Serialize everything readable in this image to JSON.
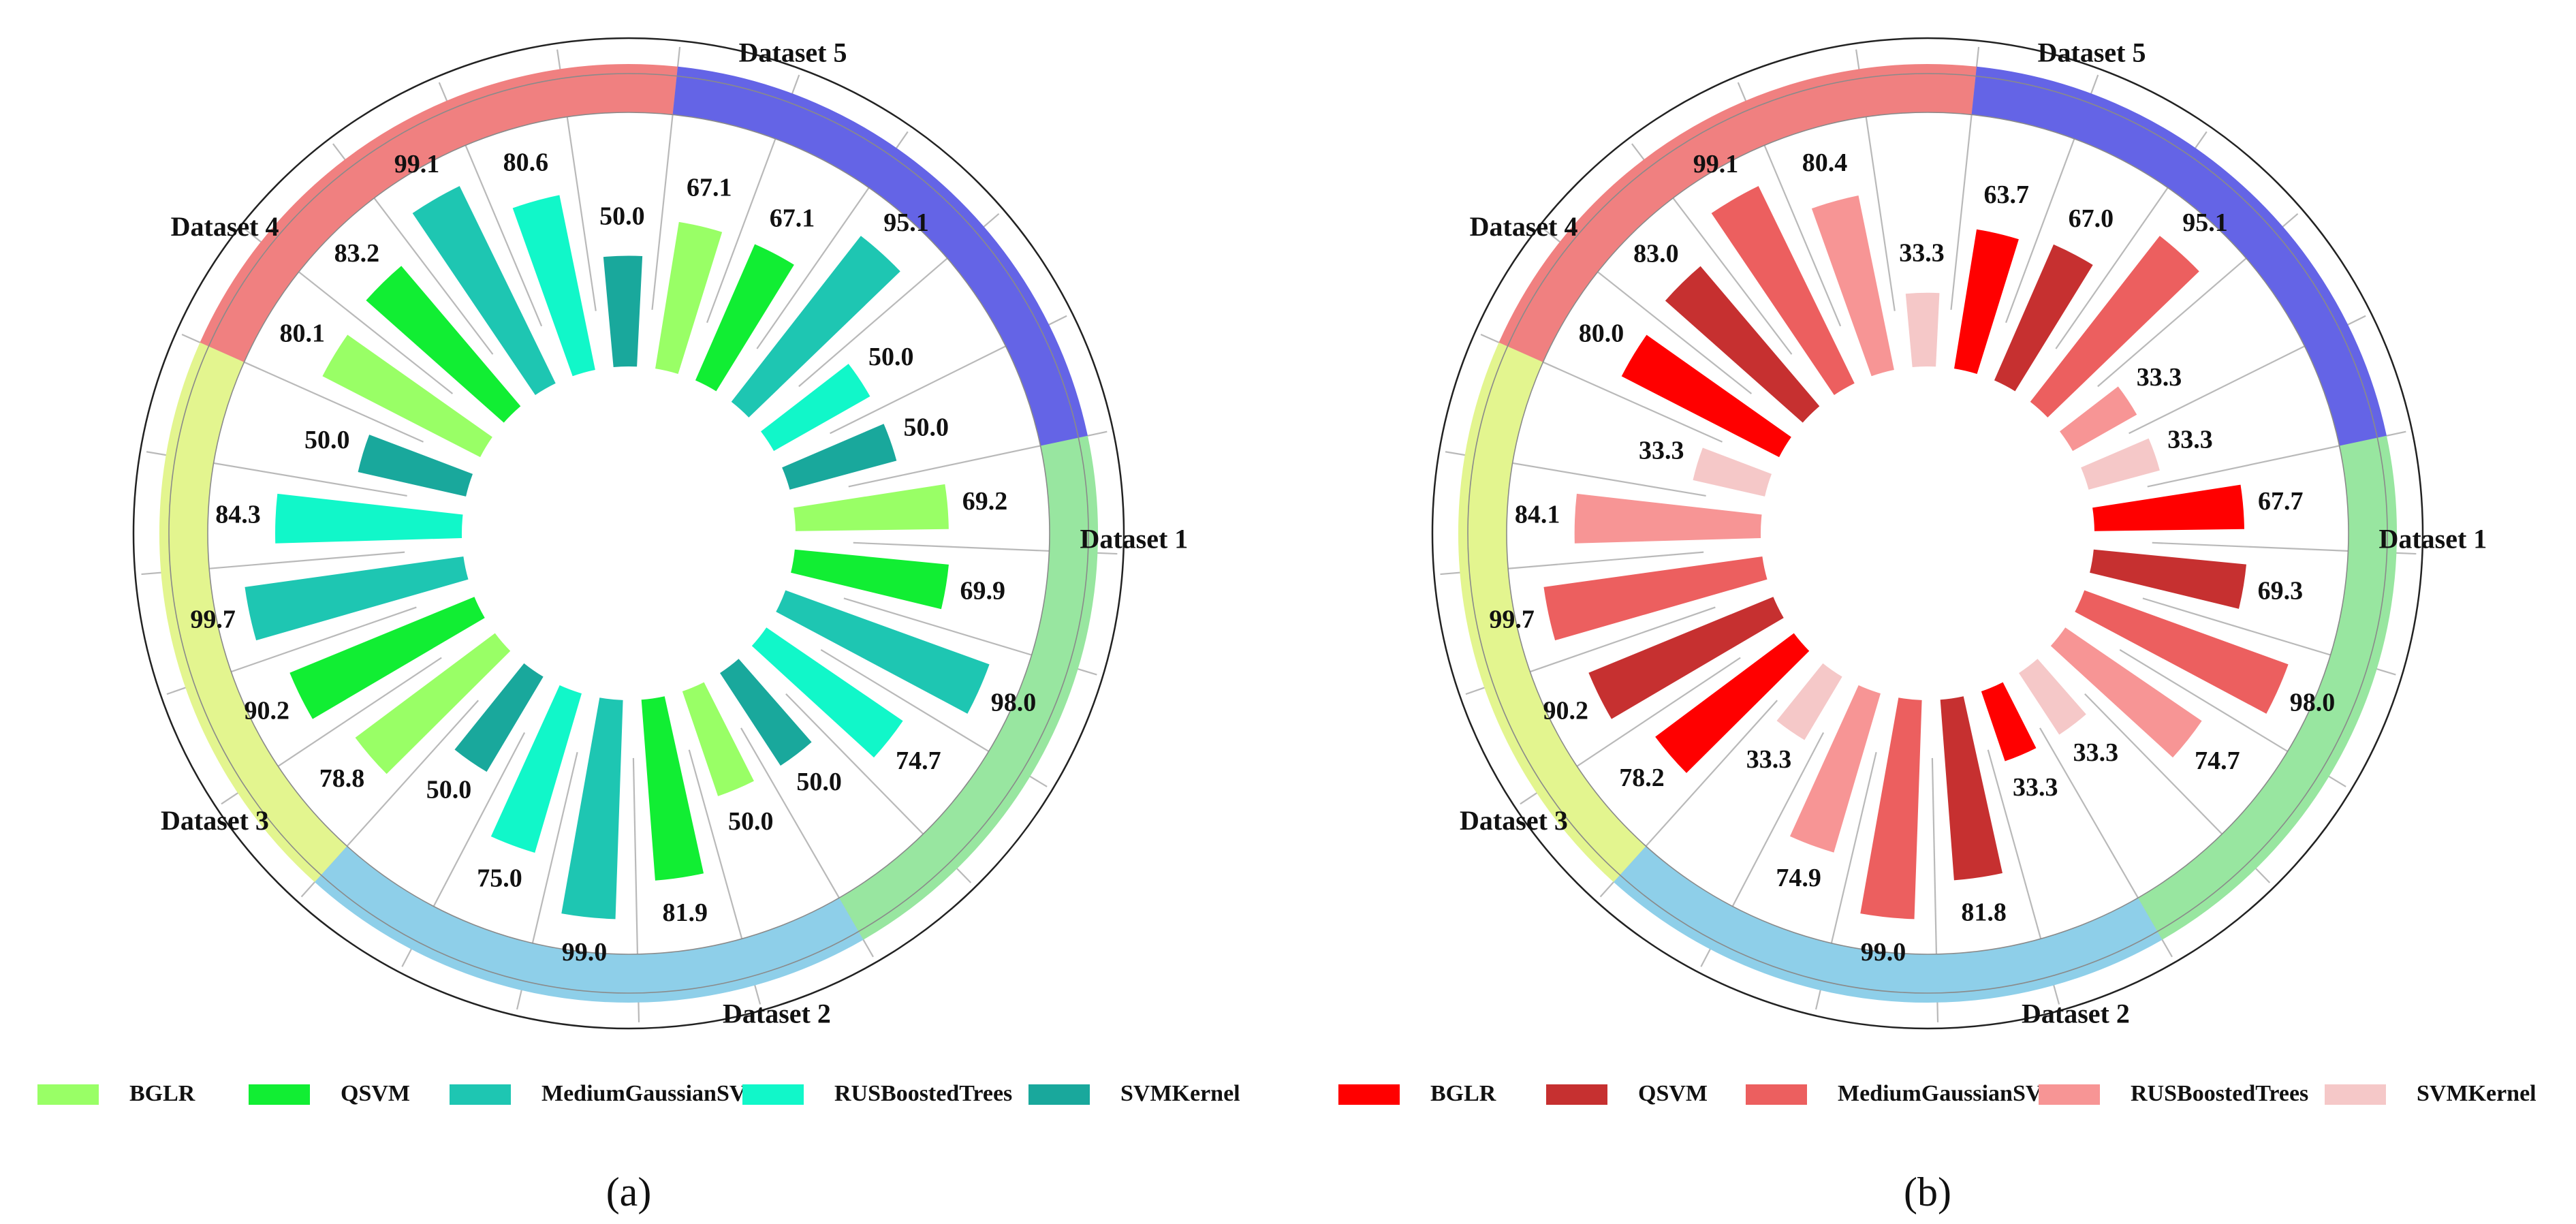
{
  "chart_data": [
    {
      "type": "bar",
      "polar": true,
      "panel_label": "(a)",
      "rmax": 100,
      "categories": [
        "Dataset 1",
        "Dataset 2",
        "Dataset 3",
        "Dataset 4",
        "Dataset 5"
      ],
      "category_colors": [
        "#98e6a0",
        "#8ecfe9",
        "#e3f58f",
        "#f08080",
        "#6464e6"
      ],
      "series": [
        {
          "name": "BGLR",
          "color": "#99ff66",
          "values": [
            69.2,
            50.0,
            78.8,
            80.1,
            67.1
          ]
        },
        {
          "name": "QSVM",
          "color": "#11ee33",
          "values": [
            69.9,
            81.9,
            90.2,
            83.2,
            67.1
          ]
        },
        {
          "name": "MediumGaussianSVM",
          "color": "#1ec6b2",
          "values": [
            98.0,
            99.0,
            99.7,
            99.1,
            95.1
          ]
        },
        {
          "name": "RUSBoostedTrees",
          "color": "#11f7c9",
          "values": [
            74.7,
            75.0,
            84.3,
            80.6,
            50.0
          ]
        },
        {
          "name": "SVMKernel",
          "color": "#19a89c",
          "values": [
            50.0,
            50.0,
            50.0,
            50.0,
            50.0
          ]
        }
      ]
    },
    {
      "type": "bar",
      "polar": true,
      "panel_label": "(b)",
      "rmax": 100,
      "categories": [
        "Dataset 1",
        "Dataset 2",
        "Dataset 3",
        "Dataset 4",
        "Dataset 5"
      ],
      "category_colors": [
        "#98e6a0",
        "#8ecfe9",
        "#e3f58f",
        "#f08080",
        "#6464e6"
      ],
      "series": [
        {
          "name": "BGLR",
          "color": "#ff0000",
          "values": [
            67.7,
            33.3,
            78.2,
            80.0,
            63.7
          ]
        },
        {
          "name": "QSVM",
          "color": "#c63030",
          "values": [
            69.3,
            81.8,
            90.2,
            83.0,
            67.0
          ]
        },
        {
          "name": "MediumGaussianSVM",
          "color": "#ec5f5f",
          "values": [
            98.0,
            99.0,
            99.7,
            99.1,
            95.1
          ]
        },
        {
          "name": "RUSBoostedTrees",
          "color": "#f79595",
          "values": [
            74.7,
            74.9,
            84.1,
            80.4,
            33.3
          ]
        },
        {
          "name": "SVMKernel",
          "color": "#f5c8c8",
          "values": [
            33.3,
            33.3,
            33.3,
            33.3,
            33.3
          ]
        }
      ]
    }
  ]
}
